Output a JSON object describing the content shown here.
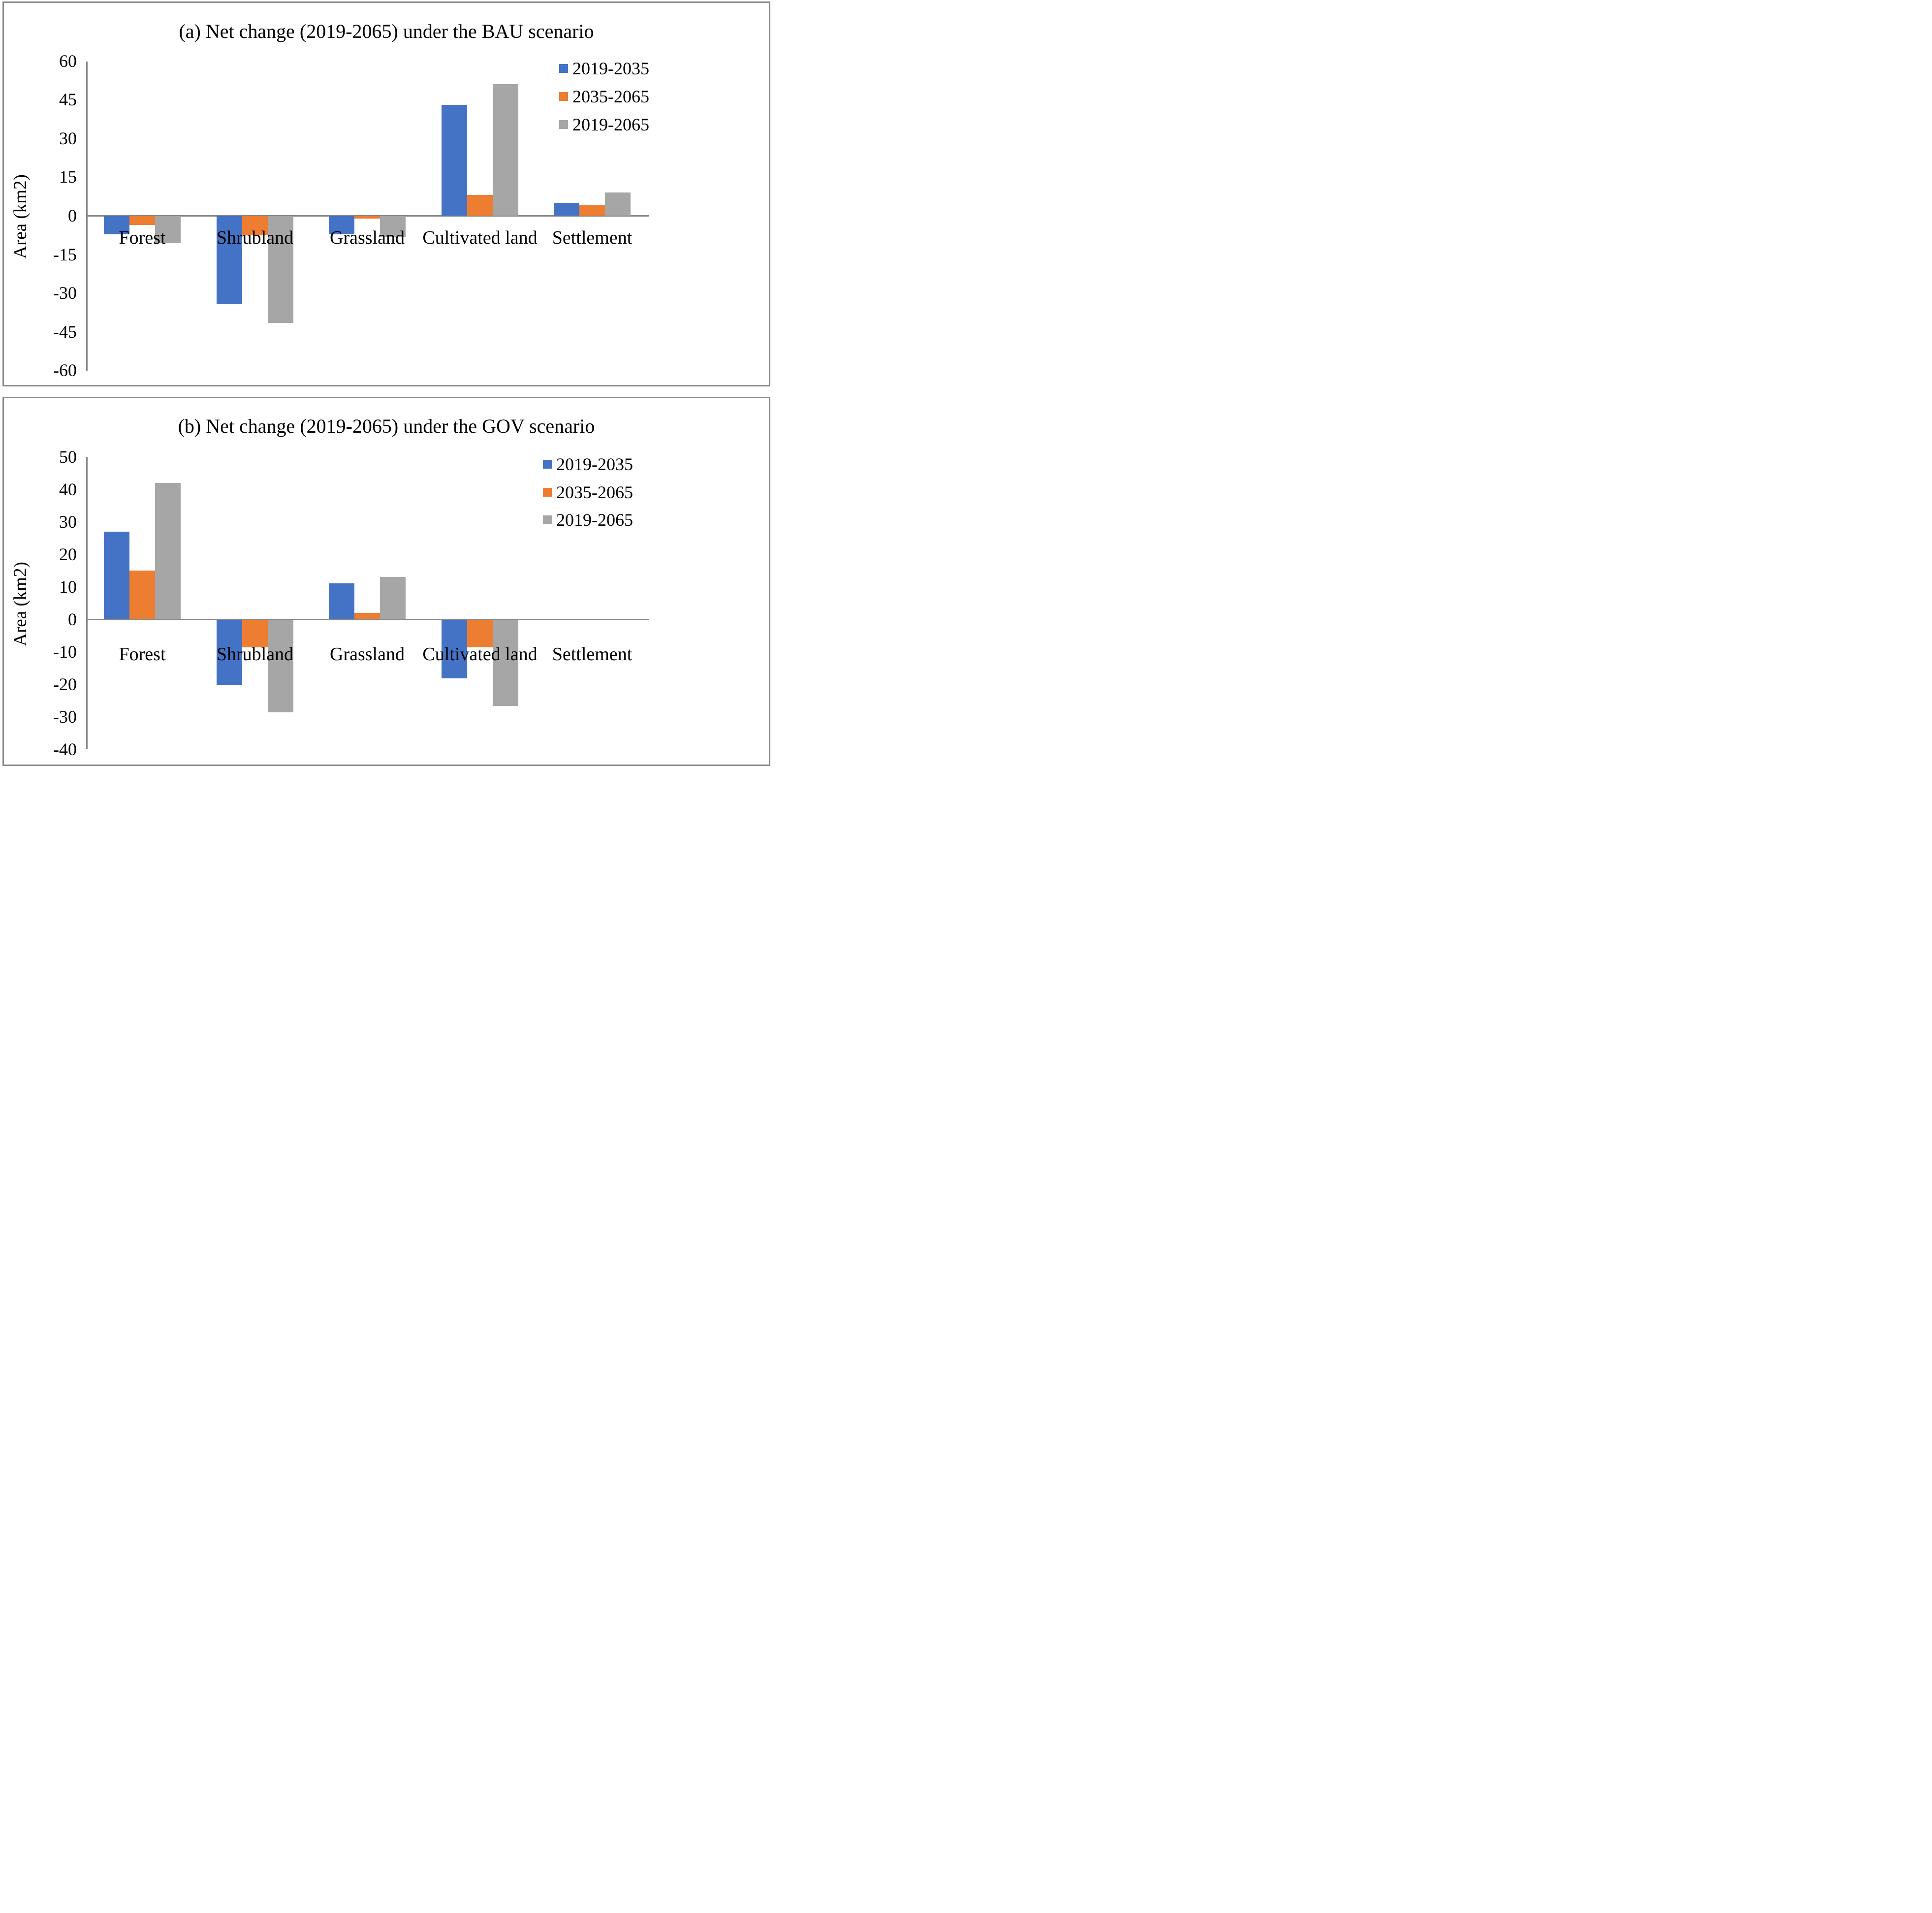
{
  "colors": {
    "series_blue": "#4472C4",
    "series_orange": "#ED7D31",
    "series_gray": "#A6A6A6",
    "axis_line": "#888888",
    "panel_border": "#8A8A8A",
    "text": "#000000"
  },
  "chart_data": [
    {
      "type": "bar",
      "title": "(a) Net change (2019-2065) under the BAU scenario",
      "xlabel": "",
      "ylabel": "Area (km2)",
      "categories": [
        "Forest",
        "Shrubland",
        "Grassland",
        "Cultivated land",
        "Settlement"
      ],
      "series": [
        {
          "name": "2019-2035",
          "color": "#4472C4",
          "values": [
            -7,
            -34,
            -7,
            43,
            5
          ]
        },
        {
          "name": "2035-2065",
          "color": "#ED7D31",
          "values": [
            -3.5,
            -7.5,
            -1,
            8,
            4
          ]
        },
        {
          "name": "2019-2065",
          "color": "#A6A6A6",
          "values": [
            -10.5,
            -41.5,
            -8,
            51,
            9
          ]
        }
      ],
      "ylim": [
        -60,
        60
      ],
      "ytick_step": 15,
      "yticks": [
        60,
        45,
        30,
        15,
        0,
        -15,
        -30,
        -45,
        -60
      ],
      "grid": false,
      "legend_position": "top-right"
    },
    {
      "type": "bar",
      "title": "(b) Net change (2019-2065) under the GOV scenario",
      "xlabel": "",
      "ylabel": "Area (km2)",
      "categories": [
        "Forest",
        "Shrubland",
        "Grassland",
        "Cultivated land",
        "Settlement"
      ],
      "series": [
        {
          "name": "2019-2035",
          "color": "#4472C4",
          "values": [
            27,
            -20,
            11,
            -18,
            0
          ]
        },
        {
          "name": "2035-2065",
          "color": "#ED7D31",
          "values": [
            15,
            -8.5,
            2,
            -8.5,
            0
          ]
        },
        {
          "name": "2019-2065",
          "color": "#A6A6A6",
          "values": [
            42,
            -28.5,
            13,
            -26.5,
            0
          ]
        }
      ],
      "ylim": [
        -40,
        50
      ],
      "ytick_step": 10,
      "yticks": [
        50,
        40,
        30,
        20,
        10,
        0,
        -10,
        -20,
        -30,
        -40
      ],
      "grid": false,
      "legend_position": "top-right"
    }
  ]
}
